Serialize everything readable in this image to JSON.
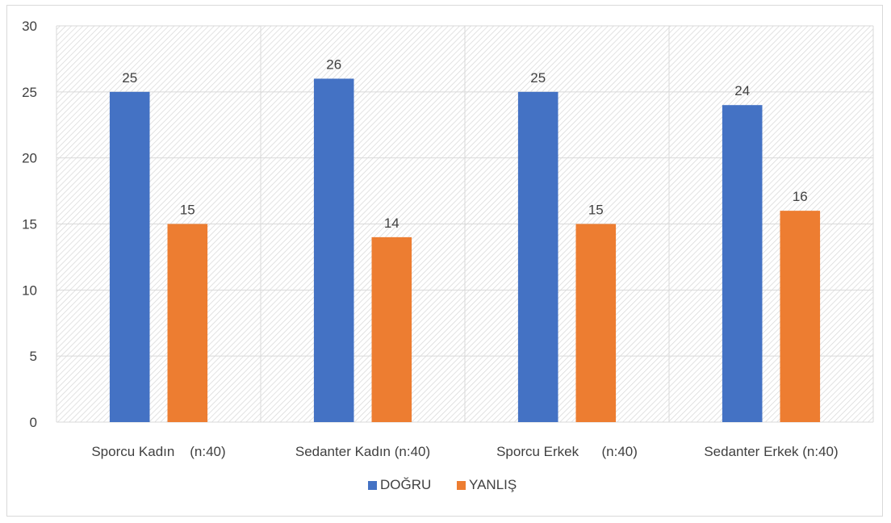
{
  "chart_data": {
    "type": "bar",
    "categories": [
      "Sporcu Kadın    (n:40)",
      "Sedanter Kadın (n:40)",
      "Sporcu Erkek      (n:40)",
      "Sedanter Erkek (n:40)"
    ],
    "series": [
      {
        "name": "DOĞRU",
        "values": [
          25,
          26,
          25,
          24
        ],
        "color": "#4472C4"
      },
      {
        "name": "YANLIŞ",
        "values": [
          15,
          14,
          15,
          16
        ],
        "color": "#ED7D31"
      }
    ],
    "ylim": [
      0,
      30
    ],
    "yticks": [
      0,
      5,
      10,
      15,
      20,
      25,
      30
    ],
    "grid": true,
    "legend_position": "bottom",
    "plot_background": "hatched"
  }
}
